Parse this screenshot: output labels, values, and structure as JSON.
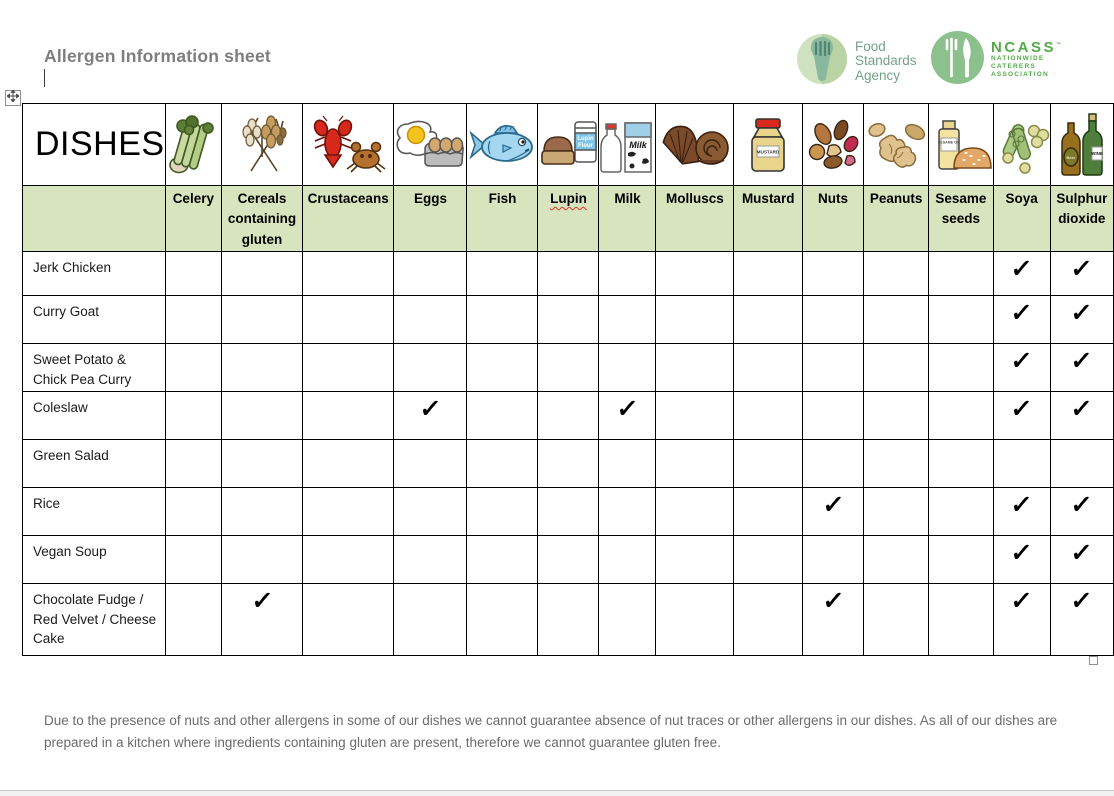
{
  "page": {
    "title": "Allergen Information sheet",
    "footer_note": "Due to the presence of nuts and other allergens in some of our dishes we cannot guarantee absence of nut traces or other allergens in our dishes. As all of our dishes are prepared in a kitchen where ingredients containing gluten are present, therefore we cannot guarantee gluten free."
  },
  "logos": {
    "fsa": {
      "lines": [
        "Food",
        "Standards",
        "Agency"
      ],
      "icon": "fsa-fork-leaf-icon",
      "text_color": "#74a287"
    },
    "ncass": {
      "name": "NCASS",
      "tm": "™",
      "sublines": [
        "NATIONWIDE",
        "CATERERS",
        "ASSOCIATION"
      ],
      "icon": "ncass-fork-knife-icon",
      "text_color": "#53ab49"
    }
  },
  "colors": {
    "header_row_bg": "#d7e4bd",
    "title_gray": "#7e7e7e",
    "footer_gray": "#6b6b6b",
    "border_black": "#000000"
  },
  "icon_texts": {
    "lupin_jar_line1": "Lupin",
    "lupin_jar_line2": "Flour",
    "milk_carton": "Milk",
    "milk_bottle": "Milk",
    "mustard_jar": "MUSTARD",
    "sesame_bottle": "SESAME OIL",
    "beer_bottle": "Beer",
    "wine_bottle": "WINE"
  },
  "table": {
    "corner_label": "DISHES",
    "check_glyph": "✓",
    "columns": [
      {
        "label": "Celery",
        "icon": "celery-icon"
      },
      {
        "label": "Cereals containing gluten",
        "icon": "cereals-wheat-icon"
      },
      {
        "label": "Crustaceans",
        "icon": "crustaceans-icon"
      },
      {
        "label": "Eggs",
        "icon": "eggs-icon"
      },
      {
        "label": "Fish",
        "icon": "fish-icon"
      },
      {
        "label": "Lupin",
        "icon": "lupin-icon",
        "spellcheck_underline": true
      },
      {
        "label": "Milk",
        "icon": "milk-icon"
      },
      {
        "label": "Molluscs",
        "icon": "molluscs-icon"
      },
      {
        "label": "Mustard",
        "icon": "mustard-icon"
      },
      {
        "label": "Nuts",
        "icon": "nuts-icon"
      },
      {
        "label": "Peanuts",
        "icon": "peanuts-icon"
      },
      {
        "label": "Sesame seeds",
        "icon": "sesame-seeds-icon"
      },
      {
        "label": "Soya",
        "icon": "soya-icon"
      },
      {
        "label": "Sulphur dioxide",
        "icon": "sulphur-dioxide-icon"
      }
    ],
    "rows": [
      {
        "dish": "Jerk Chicken",
        "checks": [
          "Soya",
          "Sulphur dioxide"
        ]
      },
      {
        "dish": "Curry Goat",
        "checks": [
          "Soya",
          "Sulphur dioxide"
        ]
      },
      {
        "dish": "Sweet Potato & Chick Pea Curry",
        "checks": [
          "Soya",
          "Sulphur dioxide"
        ]
      },
      {
        "dish": "Coleslaw",
        "checks": [
          "Eggs",
          "Milk",
          "Soya",
          "Sulphur dioxide"
        ]
      },
      {
        "dish": "Green Salad",
        "checks": []
      },
      {
        "dish": "Rice",
        "checks": [
          "Nuts",
          "Soya",
          "Sulphur dioxide"
        ]
      },
      {
        "dish": "Vegan Soup",
        "checks": [
          "Soya",
          "Sulphur dioxide"
        ]
      },
      {
        "dish": "Chocolate Fudge / Red Velvet / Cheese Cake",
        "checks": [
          "Cereals containing gluten",
          "Nuts",
          "Soya",
          "Sulphur dioxide"
        ]
      }
    ]
  }
}
